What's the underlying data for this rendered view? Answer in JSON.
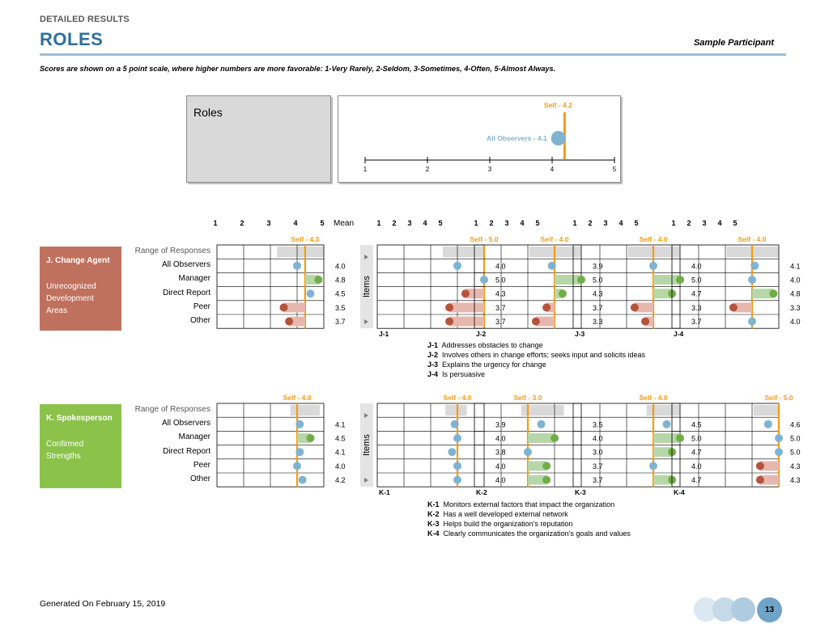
{
  "header": {
    "kicker": "DETAILED RESULTS",
    "title": "ROLES",
    "participant": "Sample Participant",
    "subtitle": "Scores are shown on a 5 point scale, where higher numbers are more favorable: 1-Very Rarely, 2-Seldom, 3-Sometimes, 4-Often, 5-Almost Always."
  },
  "summary": {
    "label": "Roles",
    "self_label": "Self - 4.2",
    "self_value": 4.2,
    "observers_label": "All Observers - 4.1",
    "observers_value": 4.1,
    "ticks": [
      "1",
      "2",
      "3",
      "4",
      "5"
    ]
  },
  "scale_ticks": [
    "1",
    "2",
    "3",
    "4",
    "5"
  ],
  "mean_header": "Mean",
  "items_label": "Items",
  "row_labels": [
    "Range of Responses",
    "All Observers",
    "Manager",
    "Direct Report",
    "Peer",
    "Other"
  ],
  "colors": {
    "orange": "#f39c12",
    "blue": "#7fb3d3",
    "green": "#70ad47",
    "red": "#b5533c",
    "section_j": "#c0715e",
    "section_k": "#8bc34a"
  },
  "sections": [
    {
      "title": "J. Change Agent",
      "subtitle": "Unrecognized Development Areas",
      "role_self_label": "Self - 4.3",
      "role_self": 4.3,
      "role_means": [
        4.0,
        4.8,
        4.5,
        3.5,
        3.7
      ],
      "role_means_text": [
        "4.0",
        "4.8",
        "4.5",
        "3.5",
        "3.7"
      ],
      "items": [
        {
          "code": "J-1",
          "self_label": "Self - 5.0",
          "self": 5.0,
          "means": [
            4.0,
            5.0,
            4.3,
            3.7,
            3.7
          ],
          "means_text": [
            "4.0",
            "5.0",
            "4.3",
            "3.7",
            "3.7"
          ]
        },
        {
          "code": "J-2",
          "self_label": "Self - 4.0",
          "self": 4.0,
          "means": [
            3.9,
            5.0,
            4.3,
            3.7,
            3.3
          ],
          "means_text": [
            "3.9",
            "5.0",
            "4.3",
            "3.7",
            "3.3"
          ]
        },
        {
          "code": "J-3",
          "self_label": "Self - 4.0",
          "self": 4.0,
          "means": [
            4.0,
            5.0,
            4.7,
            3.3,
            3.7
          ],
          "means_text": [
            "4.0",
            "5.0",
            "4.7",
            "3.3",
            "3.7"
          ]
        },
        {
          "code": "J-4",
          "self_label": "Self - 4.0",
          "self": 4.0,
          "means": [
            4.1,
            4.0,
            4.8,
            3.3,
            4.0
          ],
          "means_text": [
            "4.1",
            "4.0",
            "4.8",
            "3.3",
            "4.0"
          ]
        }
      ],
      "legend": [
        {
          "code": "J-1",
          "text": "Addresses obstacles to change"
        },
        {
          "code": "J-2",
          "text": "Involves others in change efforts; seeks input and solicits ideas"
        },
        {
          "code": "J-3",
          "text": "Explains the urgency for change"
        },
        {
          "code": "J-4",
          "text": "Is persuasive"
        }
      ]
    },
    {
      "title": "K. Spokesperson",
      "subtitle": "Confirmed Strengths",
      "role_self_label": "Self - 4.0",
      "role_self": 4.0,
      "role_means": [
        4.1,
        4.5,
        4.1,
        4.0,
        4.2
      ],
      "role_means_text": [
        "4.1",
        "4.5",
        "4.1",
        "4.0",
        "4.2"
      ],
      "items": [
        {
          "code": "K-1",
          "self_label": "Self - 4.0",
          "self": 4.0,
          "means": [
            3.9,
            4.0,
            3.8,
            4.0,
            4.0
          ],
          "means_text": [
            "3.9",
            "4.0",
            "3.8",
            "4.0",
            "4.0"
          ]
        },
        {
          "code": "K-2",
          "self_label": "Self - 3.0",
          "self": 3.0,
          "means": [
            3.5,
            4.0,
            3.0,
            3.7,
            3.7
          ],
          "means_text": [
            "3.5",
            "4.0",
            "3.0",
            "3.7",
            "3.7"
          ]
        },
        {
          "code": "K-3",
          "self_label": "Self - 4.0",
          "self": 4.0,
          "means": [
            4.5,
            5.0,
            4.7,
            4.0,
            4.7
          ],
          "means_text": [
            "4.5",
            "5.0",
            "4.7",
            "4.0",
            "4.7"
          ]
        },
        {
          "code": "K-4",
          "self_label": "Self - 5.0",
          "self": 5.0,
          "means": [
            4.6,
            5.0,
            5.0,
            4.3,
            4.3
          ],
          "means_text": [
            "4.6",
            "5.0",
            "5.0",
            "4.3",
            "4.3"
          ]
        }
      ],
      "legend": [
        {
          "code": "K-1",
          "text": "Monitors external factors that impact the organization"
        },
        {
          "code": "K-2",
          "text": "Has a well developed external network"
        },
        {
          "code": "K-3",
          "text": "Helps build the organization's reputation"
        },
        {
          "code": "K-4",
          "text": "Clearly communicates the organization's goals and values"
        }
      ]
    }
  ],
  "footer": {
    "generated": "Generated On February 15, 2019",
    "page_number": "13"
  }
}
